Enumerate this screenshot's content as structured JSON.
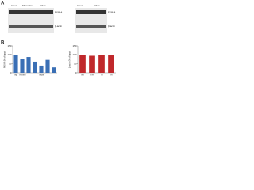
{
  "panels": {
    "a": "A",
    "b": "B"
  },
  "blot_left": {
    "lanes": [
      "Input",
      "Thrombin",
      "Triton"
    ],
    "bands": [
      "FXIII-A",
      "β-actin"
    ]
  },
  "blot_right": {
    "lanes": [
      "Input",
      "Triton"
    ],
    "bands": [
      "FXIII-A",
      "β-actin"
    ]
  },
  "chart_data": [
    {
      "type": "bar",
      "y_label": "FXIII-A (% of input)",
      "categories": [
        "Inp",
        "Thromb",
        null,
        null,
        "Triton",
        null,
        null
      ],
      "values": [
        100,
        78,
        88,
        62,
        40,
        72,
        30
      ],
      "color": "#3a6fb5",
      "ylim": [
        0,
        150
      ],
      "yticks": [
        0,
        50,
        100,
        150
      ]
    },
    {
      "type": "bar",
      "y_label": "β-actin (% of input)",
      "categories": [
        "Inp",
        "Thr",
        "Tri",
        "Tri"
      ],
      "values": [
        100,
        95,
        98,
        97
      ],
      "color": "#c0282b",
      "ylim": [
        0,
        150
      ],
      "yticks": [
        0,
        50,
        100,
        150
      ]
    }
  ]
}
